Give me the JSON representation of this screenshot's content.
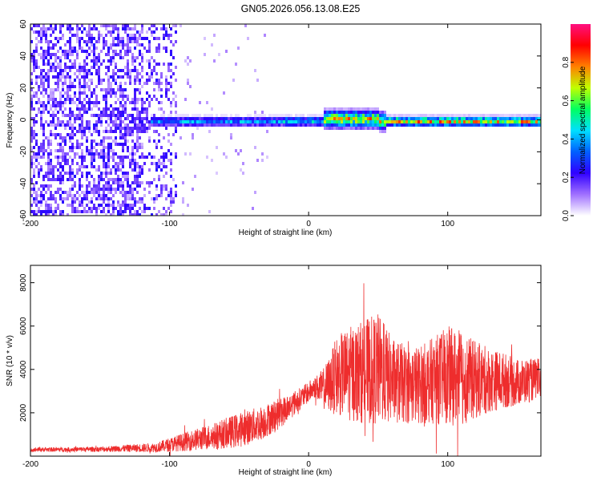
{
  "title": "GN05.2026.056.13.08.E25",
  "chart_data": [
    {
      "type": "heatmap",
      "name": "spectrogram",
      "xlabel": "Height of straight line (km)",
      "ylabel": "Frequency (Hz)",
      "xlim": [
        -200,
        167
      ],
      "ylim": [
        -60,
        60
      ],
      "xticks": [
        -200,
        -100,
        0,
        100
      ],
      "yticks": [
        -60,
        -40,
        -20,
        0,
        20,
        40,
        60
      ],
      "colorbar": {
        "label": "Normalized spectral amplitude",
        "range": [
          0,
          1
        ],
        "ticks": [
          0.0,
          0.2,
          0.4,
          0.6,
          0.8
        ],
        "colormap": [
          "#ffffff",
          "#a070ff",
          "#3000ff",
          "#0060ff",
          "#00e0ff",
          "#00ff60",
          "#c0ff00",
          "#ff8000",
          "#ff0000",
          "#ff1080"
        ]
      },
      "features": {
        "noise_region_km": [
          -200,
          -95
        ],
        "signal_band_center_hz": 0,
        "signal_band_halfwidth_hz": 4
      }
    },
    {
      "type": "line",
      "name": "snr",
      "xlabel": "Height of straight line (km)",
      "ylabel": "SNR (10 * v/v)",
      "xlim": [
        -200,
        167
      ],
      "ylim": [
        0,
        8800
      ],
      "xticks": [
        -200,
        -100,
        0,
        100
      ],
      "yticks": [
        2000,
        4000,
        6000,
        8000
      ],
      "color": "#ee2d2d",
      "envelope": {
        "x": [
          -200,
          -150,
          -110,
          -90,
          -70,
          -50,
          -35,
          -20,
          -5,
          5,
          10,
          15,
          20,
          30,
          40,
          50,
          60,
          70,
          80,
          90,
          100,
          110,
          120,
          130,
          140,
          150,
          160,
          167
        ],
        "mean": [
          300,
          320,
          400,
          650,
          900,
          1200,
          1500,
          2000,
          2700,
          3200,
          3100,
          3300,
          3700,
          3800,
          3900,
          4000,
          3500,
          3300,
          3300,
          3500,
          3700,
          3600,
          3500,
          3500,
          3500,
          3400,
          3500,
          3600
        ],
        "amp": [
          100,
          120,
          220,
          420,
          600,
          800,
          800,
          700,
          500,
          500,
          900,
          1300,
          1800,
          2200,
          2400,
          2600,
          2000,
          1800,
          1800,
          2000,
          2300,
          2200,
          1800,
          1500,
          1300,
          1100,
          1000,
          900
        ]
      }
    }
  ]
}
